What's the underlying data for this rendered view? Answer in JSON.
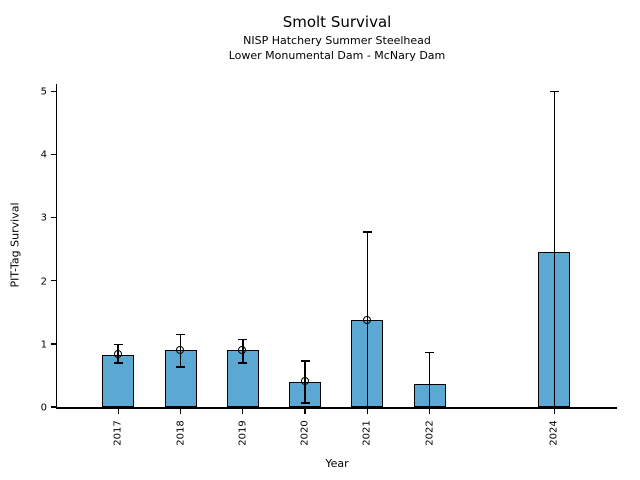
{
  "chart_data": {
    "type": "bar",
    "title": "Smolt Survival",
    "subtitle1": "NISP Hatchery Summer Steelhead",
    "subtitle2": "Lower Monumental Dam - McNary Dam",
    "xlabel": "Year",
    "ylabel": "PIT-Tag Survival",
    "ylim": [
      0,
      5.12
    ],
    "yticks": [
      0,
      1,
      2,
      3,
      4,
      5
    ],
    "grid": false,
    "legend": false,
    "bar_color": "#5BA8D2",
    "bar_edge_color": "#000000",
    "error_bar_color": "#000000",
    "categories": [
      "2017",
      "2018",
      "2019",
      "2020",
      "2021",
      "2022",
      "2024"
    ],
    "x_years": [
      2017,
      2018,
      2019,
      2020,
      2021,
      2022,
      2024
    ],
    "series": [
      {
        "name": "PIT-Tag Survival",
        "values": [
          0.83,
          0.9,
          0.9,
          0.4,
          1.38,
          0.37,
          2.45
        ],
        "err_low": [
          0.7,
          0.63,
          0.7,
          0.06,
          0.0,
          0.0,
          0.0
        ],
        "err_high": [
          0.99,
          1.15,
          1.07,
          0.73,
          2.77,
          0.86,
          5.0
        ],
        "point_marker": [
          true,
          true,
          true,
          true,
          true,
          false,
          false
        ]
      }
    ]
  }
}
